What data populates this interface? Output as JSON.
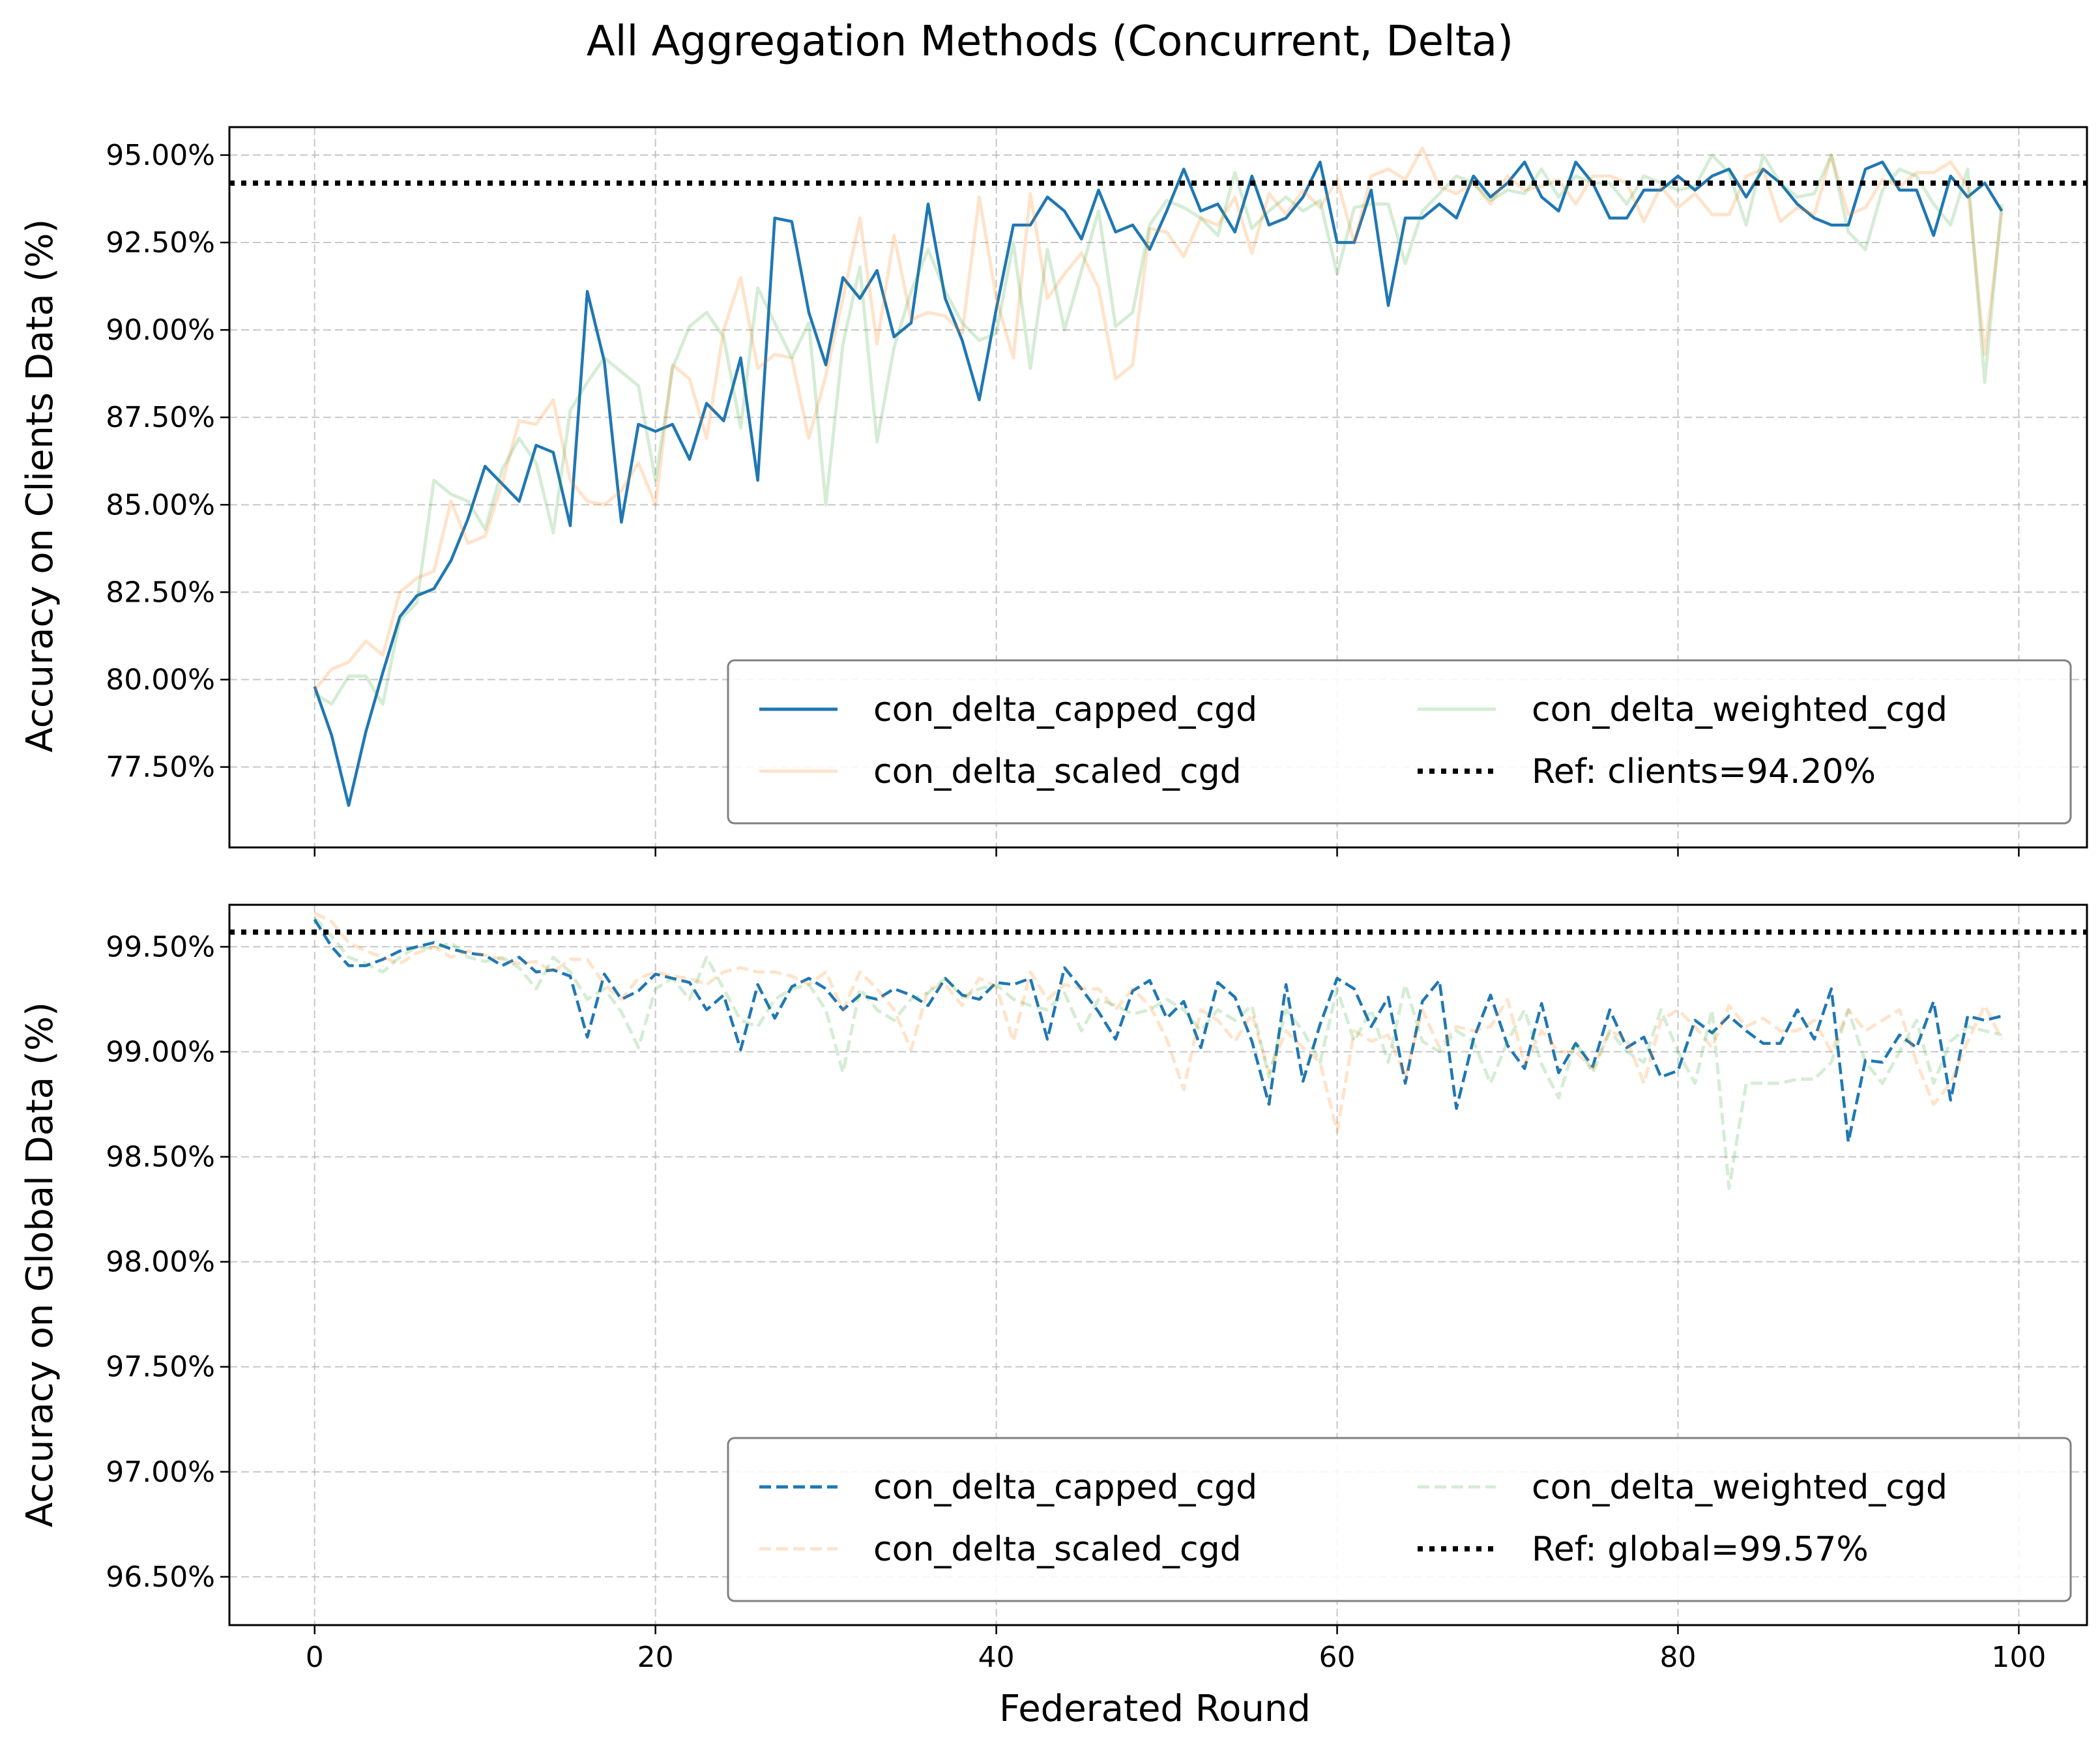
{
  "chart_data": {
    "title": "All Aggregation Methods (Concurrent, Delta)",
    "type": "line",
    "xlabel": "Federated Round",
    "xlim": [
      -5,
      104
    ],
    "xticks": [
      0,
      20,
      40,
      60,
      80,
      100
    ],
    "grid": true,
    "panels": [
      {
        "ylabel": "Accuracy on Clients Data (%)",
        "ylim": [
          75.2,
          95.8
        ],
        "yticks": [
          77.5,
          80.0,
          82.5,
          85.0,
          87.5,
          90.0,
          92.5,
          95.0
        ],
        "ytick_labels": [
          "77.50%",
          "80.00%",
          "82.50%",
          "85.00%",
          "87.50%",
          "90.00%",
          "92.50%",
          "95.00%"
        ],
        "linestyle": "solid",
        "legend_position": "lower-right",
        "reference": {
          "label": "Ref: clients=94.20%",
          "value": 94.2
        },
        "series": [
          {
            "name": "con_delta_capped_cgd",
            "color": "#1f77b4",
            "opacity": 1.0,
            "values": [
              79.8,
              78.4,
              76.4,
              78.5,
              80.2,
              81.8,
              82.4,
              82.6,
              83.4,
              84.6,
              86.1,
              85.6,
              85.1,
              86.7,
              86.5,
              84.4,
              91.1,
              89.1,
              84.5,
              87.3,
              87.1,
              87.3,
              86.3,
              87.9,
              87.4,
              89.2,
              85.7,
              93.2,
              93.1,
              90.5,
              89.0,
              91.5,
              90.9,
              91.7,
              89.8,
              90.2,
              93.6,
              90.9,
              89.7,
              88.0,
              90.6,
              93.0,
              93.0,
              93.8,
              93.4,
              92.6,
              94.0,
              92.8,
              93.0,
              92.3,
              93.4,
              94.6,
              93.4,
              93.6,
              92.8,
              94.4,
              93.0,
              93.2,
              93.8,
              94.8,
              92.5,
              92.5,
              94.0,
              90.7,
              93.2,
              93.2,
              93.6,
              93.2,
              94.4,
              93.8,
              94.2,
              94.8,
              93.8,
              93.4,
              94.8,
              94.2,
              93.2,
              93.2,
              94.0,
              94.0,
              94.4,
              94.0,
              94.4,
              94.6,
              93.8,
              94.6,
              94.2,
              93.6,
              93.2,
              93.0,
              93.0,
              94.6,
              94.8,
              94.0,
              94.0,
              92.7,
              94.4,
              93.8,
              94.2,
              93.4
            ]
          },
          {
            "name": "con_delta_scaled_cgd",
            "color": "#ff7f0e",
            "opacity": 0.22,
            "values": [
              79.7,
              80.3,
              80.5,
              81.1,
              80.7,
              82.5,
              82.9,
              83.1,
              85.1,
              83.9,
              84.1,
              85.6,
              87.4,
              87.3,
              88.0,
              85.7,
              85.1,
              85.0,
              85.4,
              86.2,
              85.0,
              89.0,
              88.6,
              86.9,
              90.0,
              91.5,
              88.9,
              89.3,
              89.2,
              86.9,
              88.7,
              90.9,
              93.2,
              89.6,
              92.7,
              90.3,
              90.5,
              90.4,
              89.9,
              93.8,
              90.9,
              89.2,
              93.9,
              90.9,
              91.6,
              92.2,
              91.2,
              88.6,
              89.0,
              92.9,
              92.8,
              92.1,
              93.2,
              93.0,
              93.8,
              92.2,
              93.9,
              93.3,
              94.0,
              93.5,
              94.3,
              92.5,
              94.4,
              94.6,
              94.3,
              95.2,
              94.1,
              93.9,
              94.2,
              93.6,
              94.4,
              94.0,
              94.1,
              94.3,
              93.6,
              94.4,
              94.4,
              94.2,
              93.1,
              94.1,
              93.5,
              93.9,
              93.3,
              93.3,
              94.4,
              94.6,
              93.1,
              93.5,
              93.3,
              95.0,
              93.3,
              93.5,
              94.3,
              94.1,
              94.5,
              94.5,
              94.8,
              94.1,
              89.3,
              93.4
            ]
          },
          {
            "name": "con_delta_weighted_cgd",
            "color": "#2ca02c",
            "opacity": 0.2,
            "values": [
              79.6,
              79.3,
              80.1,
              80.1,
              79.3,
              81.7,
              82.2,
              85.7,
              85.3,
              85.1,
              84.3,
              86.0,
              86.9,
              86.2,
              84.2,
              87.7,
              88.5,
              89.2,
              88.8,
              88.4,
              85.7,
              88.9,
              90.1,
              90.5,
              89.8,
              87.2,
              91.2,
              90.2,
              89.2,
              90.2,
              85.0,
              89.6,
              91.8,
              86.8,
              89.5,
              91.1,
              92.3,
              91.1,
              90.2,
              89.7,
              89.9,
              92.5,
              88.9,
              92.3,
              90.0,
              91.7,
              93.4,
              90.1,
              90.5,
              93.0,
              93.7,
              93.5,
              93.2,
              92.7,
              94.5,
              92.9,
              93.4,
              93.8,
              93.4,
              93.7,
              91.6,
              93.5,
              93.6,
              93.6,
              91.9,
              93.4,
              93.9,
              94.4,
              94.2,
              93.7,
              94.0,
              93.9,
              94.6,
              93.8,
              94.4,
              94.2,
              94.2,
              93.6,
              94.4,
              94.2,
              94.0,
              94.1,
              95.0,
              94.5,
              93.0,
              95.0,
              94.2,
              93.8,
              93.9,
              95.0,
              92.8,
              92.3,
              94.0,
              94.6,
              94.4,
              93.6,
              93.0,
              94.6,
              88.5,
              93.6
            ]
          }
        ]
      },
      {
        "ylabel": "Accuracy on Global Data (%)",
        "ylim": [
          96.27,
          99.7
        ],
        "yticks": [
          96.5,
          97.0,
          97.5,
          98.0,
          98.5,
          99.0,
          99.5
        ],
        "ytick_labels": [
          "96.50%",
          "97.00%",
          "97.50%",
          "98.00%",
          "98.50%",
          "99.00%",
          "99.50%"
        ],
        "linestyle": "dashed",
        "legend_position": "lower-right",
        "reference": {
          "label": "Ref: global=99.57%",
          "value": 99.57
        },
        "series": [
          {
            "name": "con_delta_capped_cgd",
            "color": "#1f77b4",
            "opacity": 1.0,
            "values": [
              99.63,
              99.5,
              99.41,
              99.41,
              99.44,
              99.48,
              99.5,
              99.52,
              99.49,
              99.47,
              99.46,
              99.41,
              99.45,
              99.38,
              99.39,
              99.36,
              99.07,
              99.37,
              99.25,
              99.29,
              99.37,
              99.35,
              99.33,
              99.2,
              99.27,
              99.01,
              99.32,
              99.16,
              99.31,
              99.35,
              99.3,
              99.2,
              99.27,
              99.25,
              99.3,
              99.27,
              99.22,
              99.35,
              99.27,
              99.25,
              99.33,
              99.32,
              99.35,
              99.06,
              99.4,
              99.3,
              99.19,
              99.06,
              99.29,
              99.34,
              99.16,
              99.24,
              99.02,
              99.33,
              99.26,
              99.05,
              98.75,
              99.32,
              98.86,
              99.13,
              99.35,
              99.3,
              99.12,
              99.26,
              98.85,
              99.24,
              99.34,
              98.73,
              99.06,
              99.27,
              99.03,
              98.92,
              99.23,
              98.9,
              99.04,
              98.93,
              99.2,
              99.02,
              99.07,
              98.88,
              98.91,
              99.15,
              99.09,
              99.17,
              99.1,
              99.04,
              99.04,
              99.2,
              99.06,
              99.3,
              98.57,
              98.96,
              98.95,
              99.08,
              99.02,
              99.24,
              98.77,
              99.17,
              99.15,
              99.17
            ]
          },
          {
            "name": "con_delta_scaled_cgd",
            "color": "#ff7f0e",
            "opacity": 0.22,
            "values": [
              99.66,
              99.62,
              99.52,
              99.48,
              99.45,
              99.42,
              99.47,
              99.5,
              99.45,
              99.48,
              99.46,
              99.44,
              99.42,
              99.43,
              99.38,
              99.44,
              99.44,
              99.32,
              99.25,
              99.35,
              99.38,
              99.36,
              99.35,
              99.32,
              99.38,
              99.4,
              99.38,
              99.38,
              99.36,
              99.32,
              99.38,
              99.2,
              99.38,
              99.3,
              99.2,
              99.01,
              99.3,
              99.32,
              99.22,
              99.35,
              99.31,
              99.05,
              99.38,
              99.25,
              99.32,
              99.3,
              99.3,
              99.2,
              99.3,
              99.22,
              99.06,
              98.82,
              99.2,
              99.15,
              99.05,
              99.18,
              98.9,
              99.1,
              99.02,
              98.95,
              98.62,
              99.1,
              99.05,
              99.08,
              98.88,
              99.2,
              99.02,
              99.12,
              99.1,
              99.12,
              99.25,
              98.94,
              99.1,
              99.0,
              99.0,
              98.92,
              99.1,
              99.06,
              98.85,
              99.15,
              99.2,
              99.12,
              99.02,
              99.22,
              99.12,
              99.16,
              99.1,
              99.1,
              99.15,
              99.0,
              99.2,
              99.1,
              99.15,
              99.2,
              98.95,
              98.75,
              98.85,
              99.05,
              99.22,
              99.06
            ]
          },
          {
            "name": "con_delta_weighted_cgd",
            "color": "#2ca02c",
            "opacity": 0.2,
            "values": [
              99.64,
              99.55,
              99.45,
              99.42,
              99.38,
              99.45,
              99.5,
              99.49,
              99.52,
              99.45,
              99.43,
              99.45,
              99.4,
              99.3,
              99.45,
              99.38,
              99.25,
              99.3,
              99.19,
              99.02,
              99.3,
              99.35,
              99.25,
              99.45,
              99.3,
              99.15,
              99.12,
              99.25,
              99.3,
              99.32,
              99.2,
              98.9,
              99.3,
              99.2,
              99.15,
              99.25,
              99.28,
              99.35,
              99.26,
              99.3,
              99.32,
              99.25,
              99.22,
              99.2,
              99.28,
              99.1,
              99.25,
              99.22,
              99.18,
              99.2,
              99.25,
              99.2,
              99.1,
              99.2,
              99.15,
              99.22,
              98.88,
              99.2,
              99.1,
              98.95,
              99.3,
              99.05,
              99.2,
              98.95,
              99.32,
              99.05,
              99.0,
              99.1,
              99.05,
              98.85,
              99.05,
              99.2,
              98.94,
              98.78,
              99.05,
              98.9,
              99.1,
              99.0,
              98.95,
              99.2,
              99.0,
              98.85,
              99.2,
              98.35,
              98.85,
              98.85,
              98.85,
              98.87,
              98.87,
              98.95,
              99.2,
              98.95,
              98.85,
              99.0,
              99.15,
              98.85,
              99.05,
              99.12,
              99.1,
              99.08
            ]
          }
        ]
      }
    ]
  }
}
